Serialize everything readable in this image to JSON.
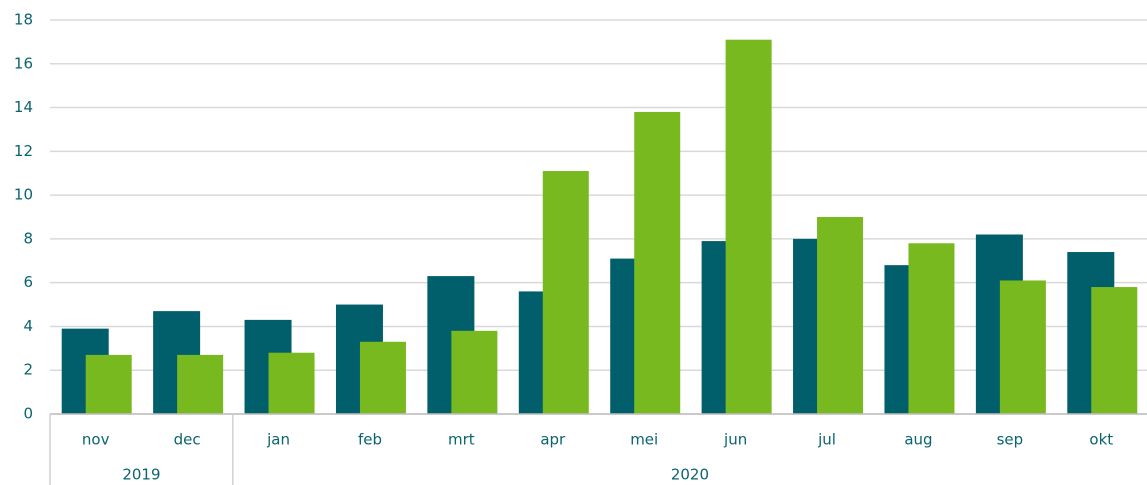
{
  "chart_data": {
    "type": "bar",
    "categories": [
      "nov",
      "dec",
      "jan",
      "feb",
      "mrt",
      "apr",
      "mei",
      "jun",
      "jul",
      "aug",
      "sep",
      "okt"
    ],
    "groups": [
      {
        "label": "2019",
        "span": 2
      },
      {
        "label": "2020",
        "span": 10
      }
    ],
    "series": [
      {
        "color": "#005f6b",
        "values": [
          3.9,
          4.7,
          4.3,
          5.0,
          6.3,
          5.6,
          7.1,
          7.9,
          8.0,
          6.8,
          8.2,
          7.4
        ]
      },
      {
        "color": "#78b920",
        "values": [
          2.7,
          2.7,
          2.8,
          3.3,
          3.8,
          11.1,
          13.8,
          17.1,
          9.0,
          7.8,
          6.1,
          5.8
        ]
      }
    ],
    "ylim": [
      0,
      18
    ],
    "yticks": [
      0,
      2,
      4,
      6,
      8,
      10,
      12,
      14,
      16,
      18
    ],
    "grid": true
  }
}
